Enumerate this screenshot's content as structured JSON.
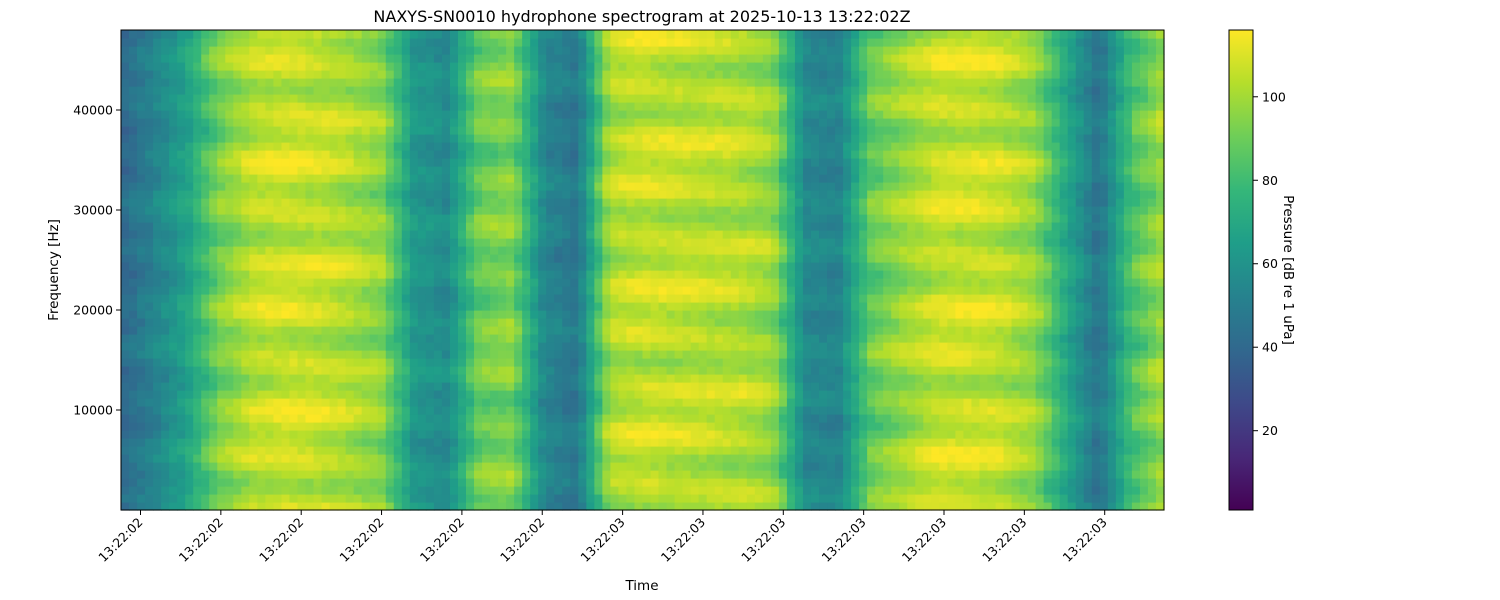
{
  "chart_data": {
    "type": "heatmap",
    "title": "NAXYS-SN0010 hydrophone spectrogram at 2025-10-13 13:22:02Z",
    "xlabel": "Time",
    "ylabel": "Frequency [Hz]",
    "colorbar_label": "Pressure [dB re 1 uPa]",
    "colormap": "viridis",
    "x_tick_labels": [
      "13:22:02",
      "13:22:02",
      "13:22:02",
      "13:22:02",
      "13:22:02",
      "13:22:02",
      "13:22:03",
      "13:22:03",
      "13:22:03",
      "13:22:03",
      "13:22:03",
      "13:22:03",
      "13:22:03"
    ],
    "ylim": [
      0,
      48000
    ],
    "y_ticks": [
      10000,
      20000,
      30000,
      40000
    ],
    "clim": [
      1,
      116
    ],
    "colorbar_ticks": [
      20,
      40,
      60,
      80,
      100
    ],
    "time_profile_db": [
      40,
      52,
      66,
      92,
      104,
      107,
      106,
      102,
      96,
      62,
      56,
      90,
      94,
      54,
      46,
      102,
      106,
      105,
      104,
      103,
      98,
      55,
      52,
      88,
      98,
      106,
      107,
      105,
      98,
      70,
      45,
      82,
      100
    ],
    "colors": {
      "viridis": [
        "#440154",
        "#482878",
        "#3e4989",
        "#31688e",
        "#26828e",
        "#1f9e89",
        "#35b779",
        "#6ece58",
        "#b5de2b",
        "#fde725"
      ],
      "axis": "#000000",
      "background": "#ffffff"
    }
  }
}
